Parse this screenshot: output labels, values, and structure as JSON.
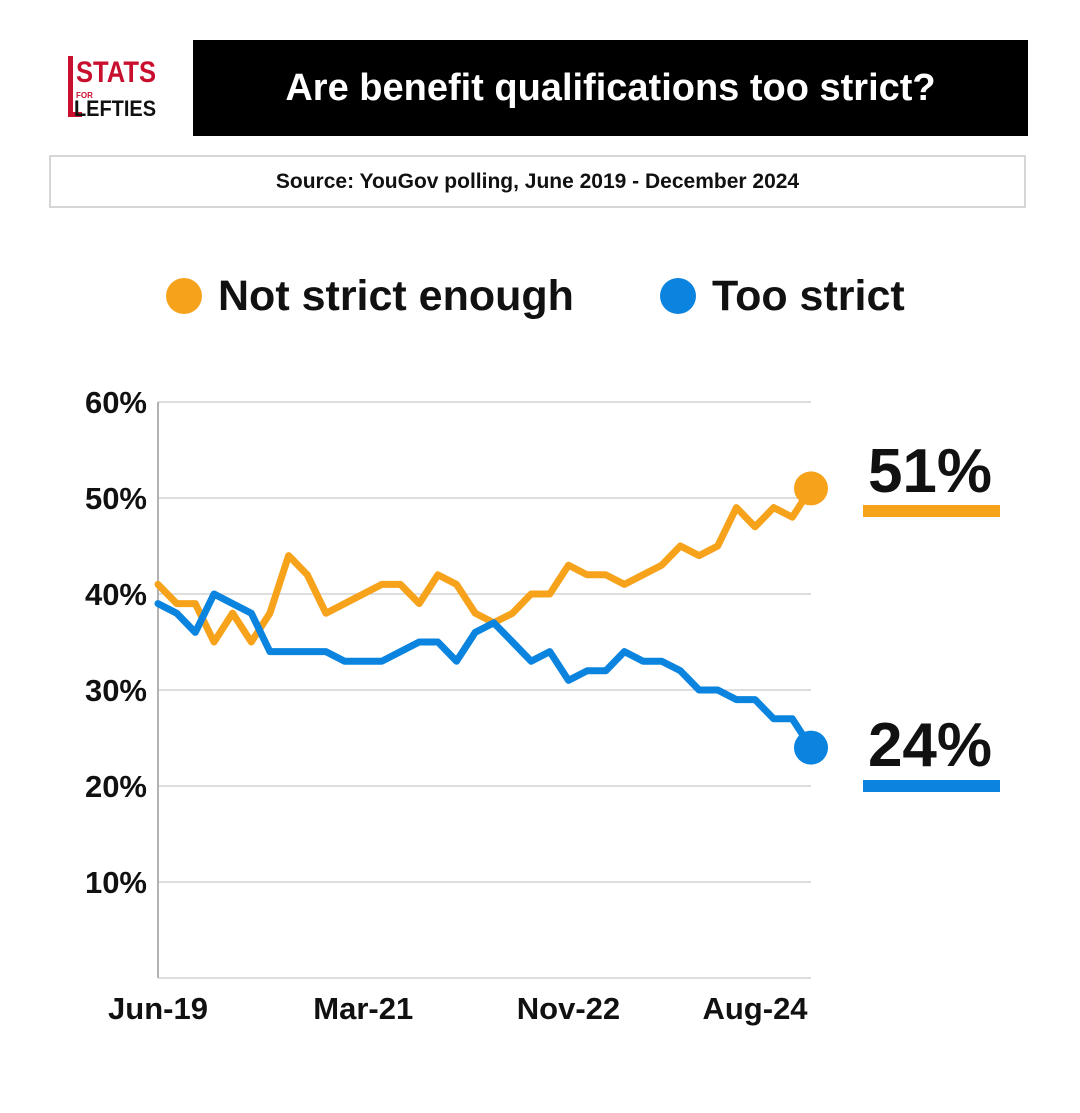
{
  "header": {
    "logo_text_top": "STATS",
    "logo_text_for": "FOR",
    "logo_text_bottom": "LEFTIES",
    "title": "Are benefit qualifications too strict?",
    "source": "Source: YouGov polling, June 2019 - December 2024"
  },
  "colors": {
    "not_strict": "#F7A21B",
    "too_strict": "#0A84DE",
    "logo_red": "#C8102E"
  },
  "chart_data": {
    "type": "line",
    "title": "Are benefit qualifications too strict?",
    "xlabel": "",
    "ylabel": "",
    "ylim": [
      0,
      60
    ],
    "yticks": [
      "10%",
      "20%",
      "30%",
      "40%",
      "50%",
      "60%"
    ],
    "ytick_values": [
      10,
      20,
      30,
      40,
      50,
      60
    ],
    "xticks": [
      "Jun-19",
      "Mar-21",
      "Nov-22",
      "Aug-24"
    ],
    "xtick_index": [
      0,
      11,
      22,
      32
    ],
    "series": [
      {
        "name": "Not strict enough",
        "color": "#F7A21B",
        "end_label": "51%",
        "values": [
          41,
          39,
          39,
          35,
          38,
          35,
          38,
          44,
          42,
          38,
          39,
          40,
          41,
          41,
          39,
          42,
          41,
          38,
          37,
          38,
          40,
          40,
          43,
          42,
          42,
          41,
          42,
          43,
          45,
          44,
          45,
          49,
          47,
          49,
          48,
          51
        ]
      },
      {
        "name": "Too strict",
        "color": "#0A84DE",
        "end_label": "24%",
        "values": [
          39,
          38,
          36,
          40,
          39,
          38,
          34,
          34,
          34,
          34,
          33,
          33,
          33,
          34,
          35,
          35,
          33,
          36,
          37,
          35,
          33,
          34,
          31,
          32,
          32,
          34,
          33,
          33,
          32,
          30,
          30,
          29,
          29,
          27,
          27,
          24
        ]
      }
    ]
  }
}
